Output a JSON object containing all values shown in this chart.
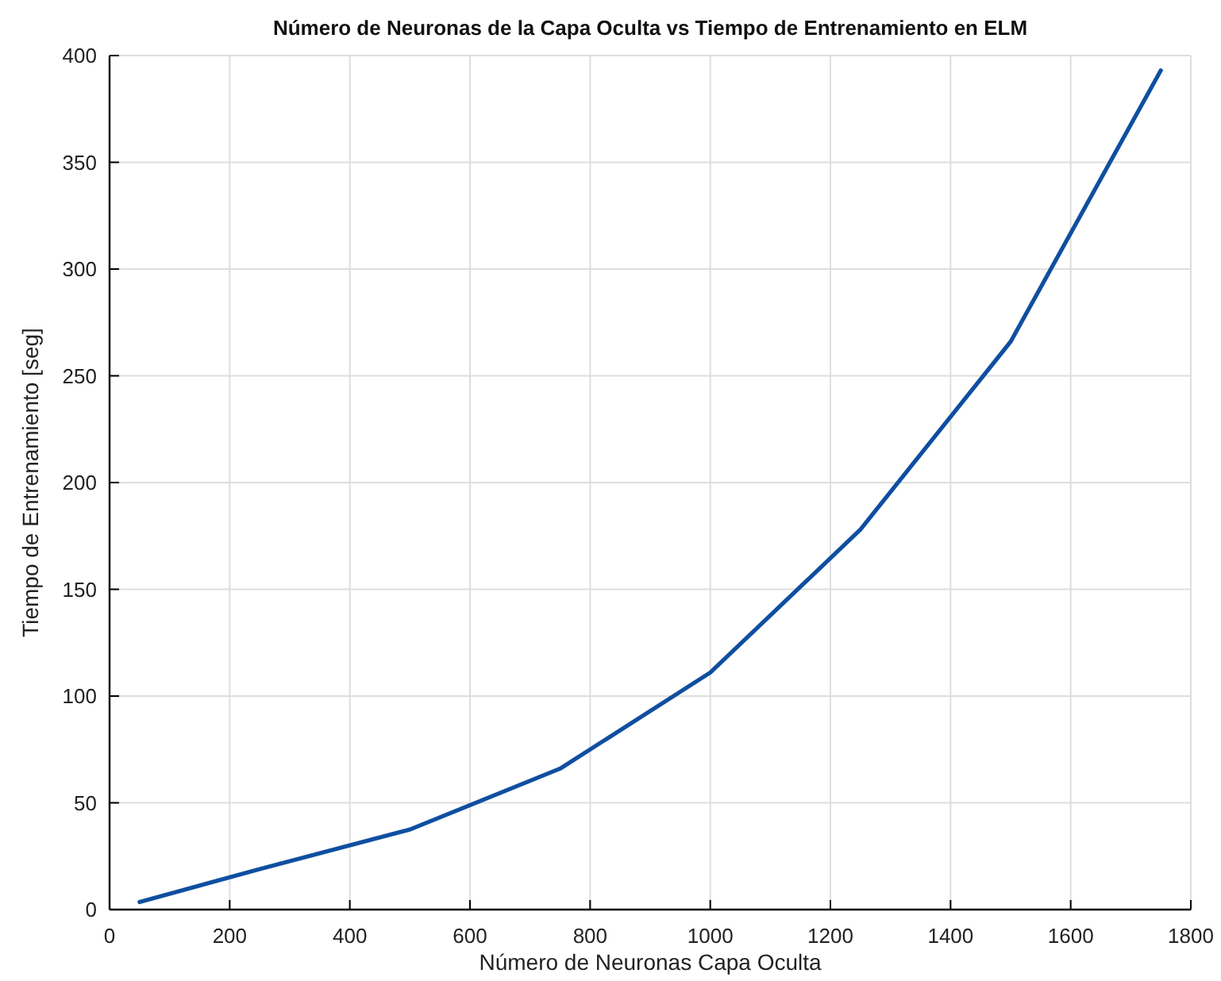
{
  "chart_data": {
    "type": "line",
    "title": "Número de Neuronas de la Capa Oculta vs Tiempo de Entrenamiento en ELM",
    "xlabel": "Número de Neuronas Capa Oculta",
    "ylabel": "Tiempo de Entrenamiento [seg]",
    "x": [
      50,
      250,
      500,
      750,
      1000,
      1250,
      1500,
      1750
    ],
    "series": [
      {
        "color": "#0f4fa0",
        "values": [
          3.5,
          19,
          37.5,
          66,
          111,
          178,
          266,
          393
        ]
      }
    ],
    "xlim": [
      0,
      1800
    ],
    "xticks": [
      0,
      200,
      400,
      600,
      800,
      1000,
      1200,
      1400,
      1600,
      1800
    ],
    "ylim": [
      0,
      400
    ],
    "yticks": [
      0,
      50,
      100,
      150,
      200,
      250,
      300,
      350,
      400
    ],
    "grid": true,
    "marker": "none",
    "line_style": "solid"
  }
}
